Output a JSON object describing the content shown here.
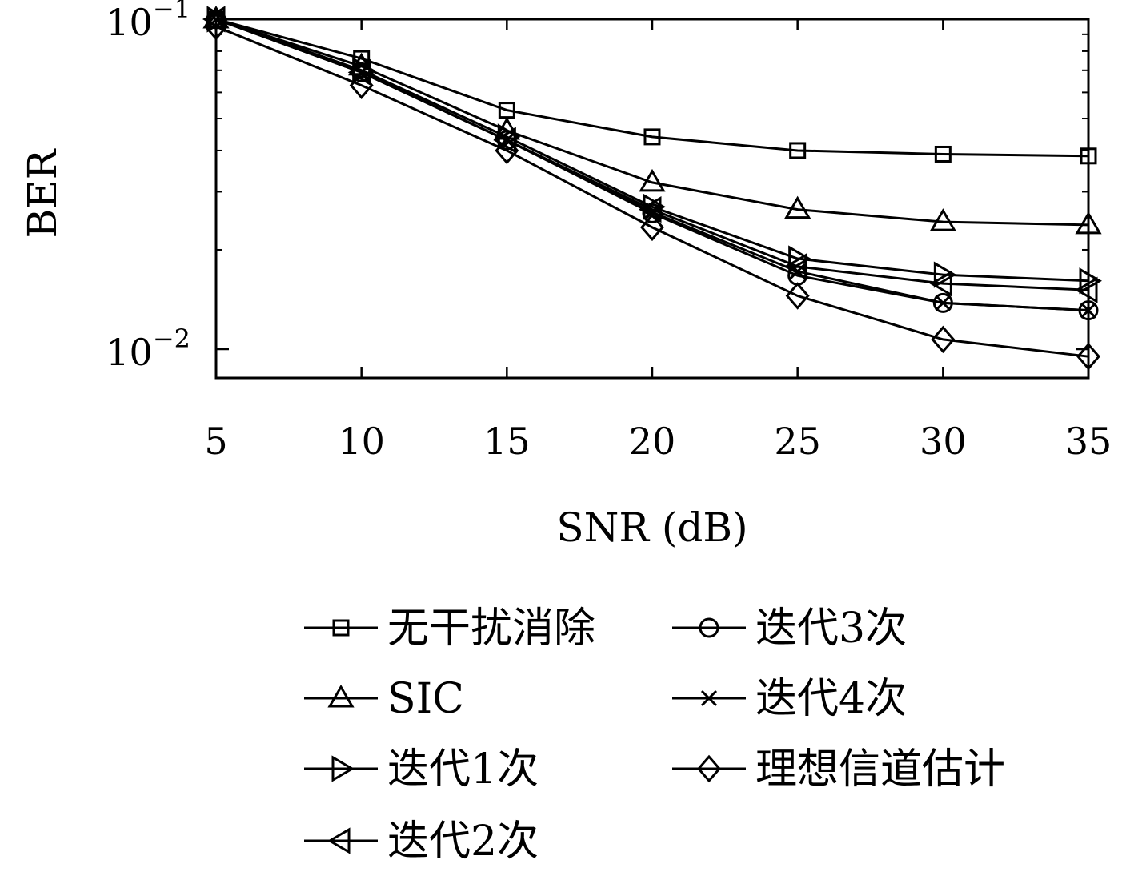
{
  "chart_data": {
    "type": "line",
    "xlabel": "SNR (dB)",
    "ylabel": "BER",
    "y_scale": "log",
    "xlim": [
      5,
      35
    ],
    "ylim": [
      0.0094,
      0.1
    ],
    "x_ticks": [
      5,
      10,
      15,
      20,
      25,
      30,
      35
    ],
    "x_tick_labels": [
      "5",
      "10",
      "15",
      "20",
      "25",
      "30",
      "35"
    ],
    "y_ticks": [
      {
        "value": 0.1,
        "base": "10",
        "exp": "−1"
      },
      {
        "value": 0.01,
        "base": "10",
        "exp": "−2"
      }
    ],
    "x": [
      5,
      10,
      15,
      20,
      25,
      30,
      35
    ],
    "series": [
      {
        "name": "无干扰消除",
        "marker": "square",
        "values": [
          0.1,
          0.076,
          0.053,
          0.044,
          0.04,
          0.039,
          0.0385
        ]
      },
      {
        "name": "SIC",
        "marker": "triangle-up",
        "values": [
          0.1,
          0.072,
          0.046,
          0.032,
          0.0265,
          0.0243,
          0.0238
        ]
      },
      {
        "name": "迭代1次",
        "marker": "triangle-right",
        "values": [
          0.1,
          0.07,
          0.044,
          0.027,
          0.0188,
          0.0168,
          0.0161
        ]
      },
      {
        "name": "迭代2次",
        "marker": "triangle-left",
        "values": [
          0.1,
          0.069,
          0.043,
          0.0265,
          0.0178,
          0.0158,
          0.0151
        ]
      },
      {
        "name": "迭代3次",
        "marker": "circle",
        "values": [
          0.1,
          0.069,
          0.043,
          0.0258,
          0.0167,
          0.0138,
          0.0131
        ]
      },
      {
        "name": "迭代4次",
        "marker": "x",
        "values": [
          0.1,
          0.069,
          0.043,
          0.026,
          0.0172,
          0.0138,
          0.0131
        ]
      },
      {
        "name": "理想信道估计",
        "marker": "diamond",
        "values": [
          0.095,
          0.063,
          0.04,
          0.0234,
          0.0145,
          0.0107,
          0.0095
        ]
      }
    ],
    "legend_position": "below",
    "grid": false
  }
}
